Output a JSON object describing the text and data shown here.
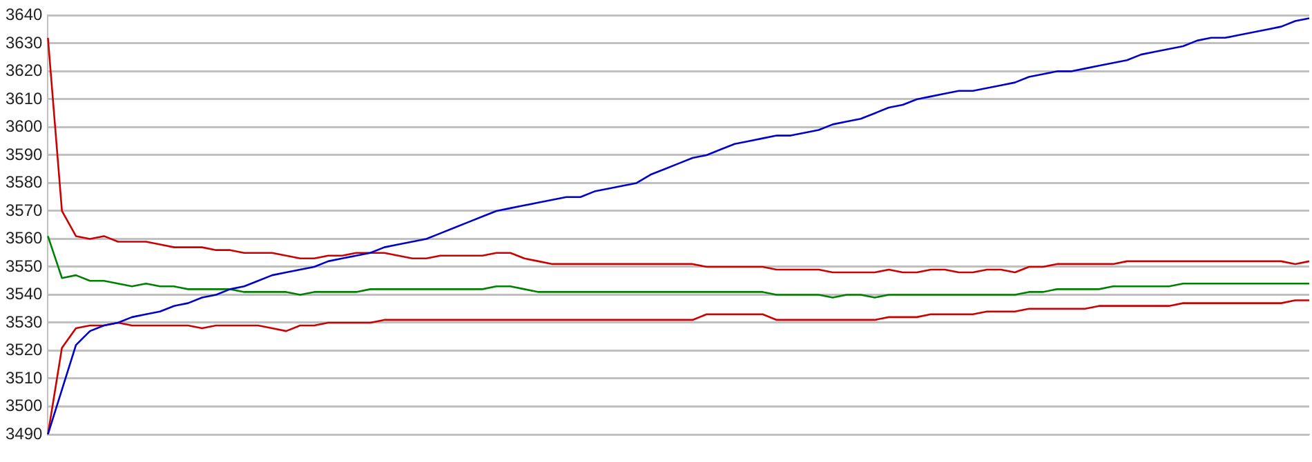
{
  "chart_data": {
    "type": "line",
    "categories": [
      null,
      null,
      null,
      null,
      null,
      null,
      null,
      null,
      null,
      null,
      null,
      null,
      null,
      null,
      null,
      null,
      null,
      null,
      null,
      null,
      null,
      null,
      null,
      null,
      null,
      null,
      null,
      null,
      null,
      null,
      null,
      null,
      null,
      null,
      null,
      null,
      null,
      null,
      null,
      null,
      null,
      null,
      null,
      null,
      null,
      null,
      null,
      null,
      null,
      null,
      null,
      null,
      null,
      null,
      null,
      null,
      null,
      null,
      null,
      null,
      null,
      null,
      null,
      null,
      null,
      null,
      null,
      null,
      null,
      null,
      null,
      null,
      null,
      null,
      null,
      null,
      null,
      null,
      null,
      null,
      null,
      null,
      null,
      null,
      null,
      null,
      null,
      null,
      null,
      null,
      null
    ],
    "series": [
      {
        "color": "#0000cc",
        "values": [
          3490,
          3506,
          3522,
          3527,
          3529,
          3530,
          3532,
          3533,
          3534,
          3536,
          3537,
          3539,
          3540,
          3542,
          3543,
          3545,
          3547,
          3548,
          3549,
          3550,
          3552,
          3553,
          3554,
          3555,
          3557,
          3558,
          3559,
          3560,
          3562,
          3564,
          3566,
          3568,
          3570,
          3571,
          3572,
          3573,
          3574,
          3575,
          3575,
          3577,
          3578,
          3579,
          3580,
          3583,
          3585,
          3587,
          3589,
          3590,
          3592,
          3594,
          3595,
          3596,
          3597,
          3597,
          3598,
          3599,
          3601,
          3602,
          3603,
          3605,
          3607,
          3608,
          3610,
          3611,
          3612,
          3613,
          3613,
          3614,
          3615,
          3616,
          3618,
          3619,
          3620,
          3620,
          3621,
          3622,
          3623,
          3624,
          3626,
          3627,
          3628,
          3629,
          3631,
          3632,
          3632,
          3633,
          3634,
          3635,
          3636,
          3638,
          3639
        ]
      },
      {
        "color": "#cc0000",
        "values": [
          3632,
          3570,
          3561,
          3560,
          3561,
          3559,
          3559,
          3559,
          3558,
          3557,
          3557,
          3557,
          3556,
          3556,
          3555,
          3555,
          3555,
          3554,
          3553,
          3553,
          3554,
          3554,
          3555,
          3555,
          3555,
          3554,
          3553,
          3553,
          3554,
          3554,
          3554,
          3554,
          3555,
          3555,
          3553,
          3552,
          3551,
          3551,
          3551,
          3551,
          3551,
          3551,
          3551,
          3551,
          3551,
          3551,
          3551,
          3550,
          3550,
          3550,
          3550,
          3550,
          3549,
          3549,
          3549,
          3549,
          3548,
          3548,
          3548,
          3548,
          3549,
          3548,
          3548,
          3549,
          3549,
          3548,
          3548,
          3549,
          3549,
          3548,
          3550,
          3550,
          3551,
          3551,
          3551,
          3551,
          3551,
          3552,
          3552,
          3552,
          3552,
          3552,
          3552,
          3552,
          3552,
          3552,
          3552,
          3552,
          3552,
          3551,
          3552
        ]
      },
      {
        "color": "#008000",
        "values": [
          3561,
          3546,
          3547,
          3545,
          3545,
          3544,
          3543,
          3544,
          3543,
          3543,
          3542,
          3542,
          3542,
          3542,
          3541,
          3541,
          3541,
          3541,
          3540,
          3541,
          3541,
          3541,
          3541,
          3542,
          3542,
          3542,
          3542,
          3542,
          3542,
          3542,
          3542,
          3542,
          3543,
          3543,
          3542,
          3541,
          3541,
          3541,
          3541,
          3541,
          3541,
          3541,
          3541,
          3541,
          3541,
          3541,
          3541,
          3541,
          3541,
          3541,
          3541,
          3541,
          3540,
          3540,
          3540,
          3540,
          3539,
          3540,
          3540,
          3539,
          3540,
          3540,
          3540,
          3540,
          3540,
          3540,
          3540,
          3540,
          3540,
          3540,
          3541,
          3541,
          3542,
          3542,
          3542,
          3542,
          3543,
          3543,
          3543,
          3543,
          3543,
          3544,
          3544,
          3544,
          3544,
          3544,
          3544,
          3544,
          3544,
          3544,
          3544
        ]
      },
      {
        "color": "#cc0000",
        "values": [
          3490,
          3521,
          3528,
          3529,
          3529,
          3530,
          3529,
          3529,
          3529,
          3529,
          3529,
          3528,
          3529,
          3529,
          3529,
          3529,
          3528,
          3527,
          3529,
          3529,
          3530,
          3530,
          3530,
          3530,
          3531,
          3531,
          3531,
          3531,
          3531,
          3531,
          3531,
          3531,
          3531,
          3531,
          3531,
          3531,
          3531,
          3531,
          3531,
          3531,
          3531,
          3531,
          3531,
          3531,
          3531,
          3531,
          3531,
          3533,
          3533,
          3533,
          3533,
          3533,
          3531,
          3531,
          3531,
          3531,
          3531,
          3531,
          3531,
          3531,
          3532,
          3532,
          3532,
          3533,
          3533,
          3533,
          3533,
          3534,
          3534,
          3534,
          3535,
          3535,
          3535,
          3535,
          3535,
          3536,
          3536,
          3536,
          3536,
          3536,
          3536,
          3537,
          3537,
          3537,
          3537,
          3537,
          3537,
          3537,
          3537,
          3538,
          3538
        ]
      }
    ],
    "ylim": [
      3490,
      3640
    ],
    "yticks": [
      3490,
      3500,
      3510,
      3520,
      3530,
      3540,
      3550,
      3560,
      3570,
      3580,
      3590,
      3600,
      3610,
      3620,
      3630,
      3640
    ],
    "grid": "y",
    "legend": false,
    "tick_labels": "y",
    "marker": "none",
    "line_style": "solid"
  }
}
